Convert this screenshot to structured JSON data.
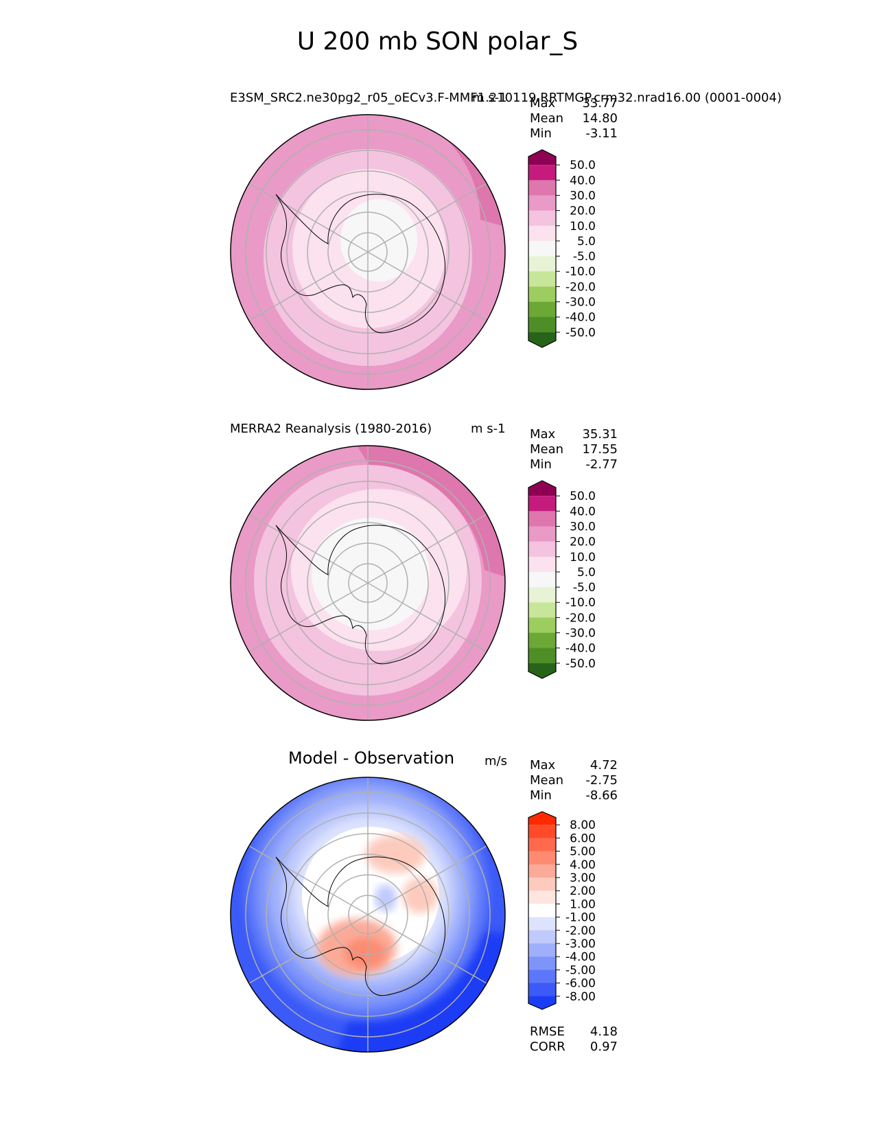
{
  "figure": {
    "title": "U 200 mb SON polar_S"
  },
  "panels": [
    {
      "title": "E3SM_SRC2.ne30pg2_r05_oECv3.F-MMF1.210119.RRTMGP.crm32.nrad16.00 (0001-0004)",
      "units": "m s-1",
      "stats": [
        {
          "label": "Max",
          "value": "33.77"
        },
        {
          "label": "Mean",
          "value": "14.80"
        },
        {
          "label": "Min",
          "value": "-3.11"
        }
      ],
      "colorbar": {
        "ticks": [
          "50.0",
          "40.0",
          "30.0",
          "20.0",
          "10.0",
          "5.0",
          "-5.0",
          "-10.0",
          "-20.0",
          "-30.0",
          "-40.0",
          "-50.0"
        ],
        "colors": [
          "#8e0152",
          "#c51b7d",
          "#de77ae",
          "#e99ac6",
          "#f4c3df",
          "#fbe2ee",
          "#f7f7f7",
          "#e8f3d6",
          "#c7e69a",
          "#9ccd5f",
          "#6ba835",
          "#4d8f26",
          "#276419"
        ]
      }
    },
    {
      "title": "MERRA2 Reanalysis (1980-2016)",
      "units": "m s-1",
      "stats": [
        {
          "label": "Max",
          "value": "35.31"
        },
        {
          "label": "Mean",
          "value": "17.55"
        },
        {
          "label": "Min",
          "value": "-2.77"
        }
      ],
      "colorbar": {
        "ticks": [
          "50.0",
          "40.0",
          "30.0",
          "20.0",
          "10.0",
          "5.0",
          "-5.0",
          "-10.0",
          "-20.0",
          "-30.0",
          "-40.0",
          "-50.0"
        ],
        "colors": [
          "#8e0152",
          "#c51b7d",
          "#de77ae",
          "#e99ac6",
          "#f4c3df",
          "#fbe2ee",
          "#f7f7f7",
          "#e8f3d6",
          "#c7e69a",
          "#9ccd5f",
          "#6ba835",
          "#4d8f26",
          "#276419"
        ]
      }
    },
    {
      "title": "Model - Observation",
      "units": "m/s",
      "stats": [
        {
          "label": "Max",
          "value": "4.72"
        },
        {
          "label": "Mean",
          "value": "-2.75"
        },
        {
          "label": "Min",
          "value": "-8.66"
        }
      ],
      "extra_stats": [
        {
          "label": "RMSE",
          "value": "4.18"
        },
        {
          "label": "CORR",
          "value": "0.97"
        }
      ],
      "colorbar": {
        "ticks": [
          "8.00",
          "6.00",
          "5.00",
          "4.00",
          "3.00",
          "2.00",
          "1.00",
          "-1.00",
          "-2.00",
          "-3.00",
          "-4.00",
          "-5.00",
          "-6.00",
          "-8.00"
        ],
        "colors": [
          "#ff2a00",
          "#ff4a2a",
          "#ff6a4d",
          "#fd8b72",
          "#fcaa98",
          "#fdcbbd",
          "#fde6df",
          "#ffffff",
          "#dde3fd",
          "#c0cafc",
          "#9fb0fb",
          "#7e94fa",
          "#5c77f9",
          "#3b5af7",
          "#1b3ef5"
        ]
      }
    }
  ],
  "chart_data": [
    {
      "type": "heatmap",
      "title": "E3SM_SRC2.ne30pg2_r05_oECv3.F-MMF1.210119.RRTMGP.crm32.nrad16.00 (0001-0004)",
      "projection": "south polar stereographic",
      "variable": "U 200 mb SON",
      "units": "m s-1",
      "max": 33.77,
      "mean": 14.8,
      "min": -3.11,
      "levels": [
        -50,
        -40,
        -30,
        -20,
        -10,
        -5,
        5,
        10,
        20,
        30,
        40,
        50
      ]
    },
    {
      "type": "heatmap",
      "title": "MERRA2 Reanalysis (1980-2016)",
      "projection": "south polar stereographic",
      "variable": "U 200 mb SON",
      "units": "m s-1",
      "max": 35.31,
      "mean": 17.55,
      "min": -2.77,
      "levels": [
        -50,
        -40,
        -30,
        -20,
        -10,
        -5,
        5,
        10,
        20,
        30,
        40,
        50
      ]
    },
    {
      "type": "heatmap",
      "title": "Model - Observation",
      "projection": "south polar stereographic",
      "units": "m/s",
      "max": 4.72,
      "mean": -2.75,
      "min": -8.66,
      "rmse": 4.18,
      "corr": 0.97,
      "levels": [
        -8,
        -6,
        -5,
        -4,
        -3,
        -2,
        -1,
        1,
        2,
        3,
        4,
        5,
        6,
        8
      ]
    }
  ]
}
